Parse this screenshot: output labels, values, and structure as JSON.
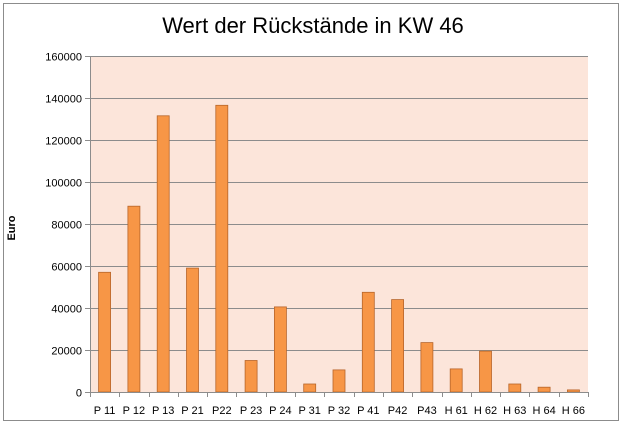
{
  "chart_data": {
    "type": "bar",
    "title": "Wert der Rückstände in KW 46",
    "xlabel": "",
    "ylabel": "Euro",
    "ylim": [
      0,
      160000
    ],
    "y_ticks": [
      0,
      20000,
      40000,
      60000,
      80000,
      100000,
      120000,
      140000,
      160000
    ],
    "grid": true,
    "legend": "none",
    "categories": [
      "P 11",
      "P 12",
      "P 13",
      "P 21",
      "P22",
      "P 23",
      "P 24",
      "P 31",
      "P 32",
      "P 41",
      "P42",
      "P43",
      "H 61",
      "H 62",
      "H 63",
      "H 64",
      "H 66"
    ],
    "values": [
      57000,
      88500,
      131500,
      59000,
      136500,
      15000,
      40500,
      3800,
      10500,
      47500,
      44000,
      23500,
      11000,
      19500,
      3800,
      2300,
      1000
    ],
    "colors": {
      "bar_fill": "#F79646",
      "bar_stroke": "#B7652A",
      "plot_background": "#FCE5DA",
      "gridline": "#8C8C8C",
      "axis": "#8C8C8C"
    }
  }
}
